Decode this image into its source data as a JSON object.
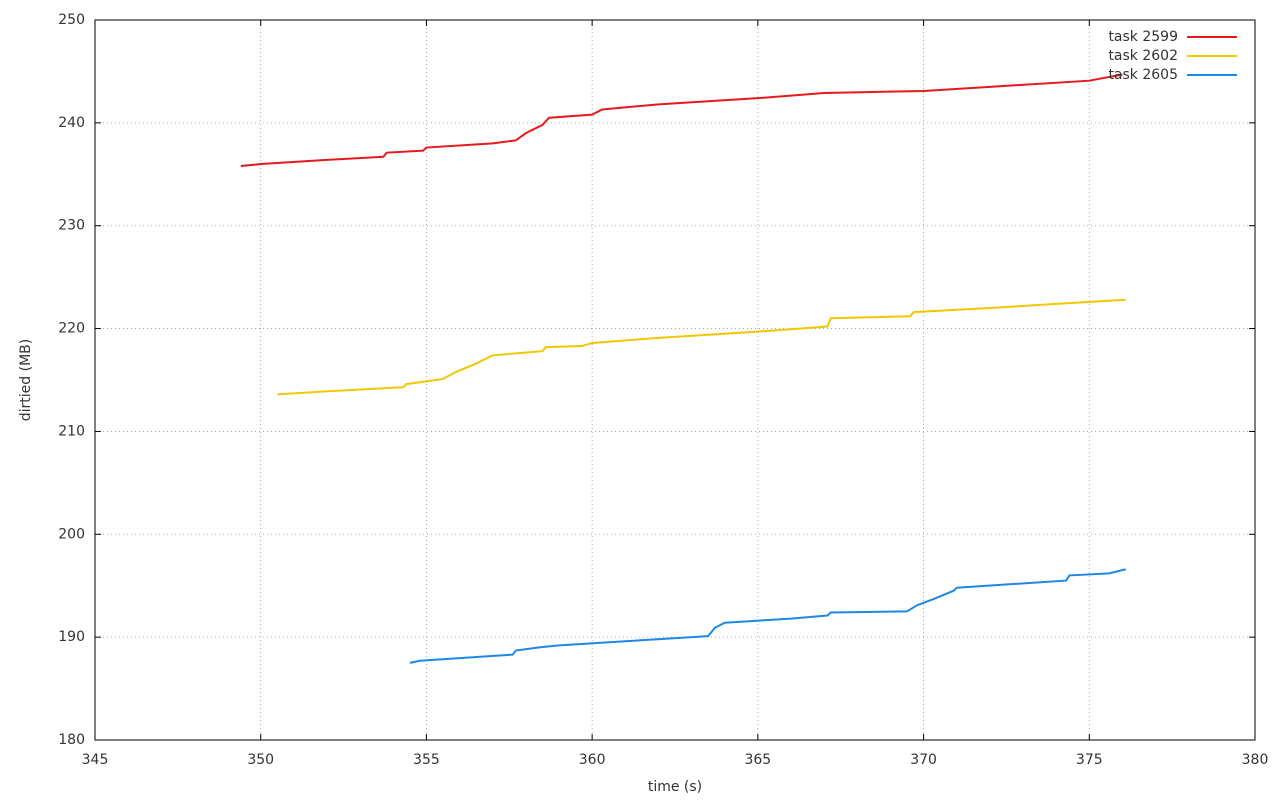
{
  "chart_data": {
    "type": "line",
    "x_label": "time (s)",
    "y_label": "dirtied (MB)",
    "xlim": [
      345,
      380
    ],
    "xticks": [
      345,
      350,
      355,
      360,
      365,
      370,
      375,
      380
    ],
    "ylim": [
      180,
      250
    ],
    "yticks": [
      180,
      190,
      200,
      210,
      220,
      230,
      240,
      250
    ],
    "grid": true,
    "legend": "top right",
    "series": [
      {
        "name": "task 2599",
        "color": "#e41a1c",
        "x": [
          349.4,
          350,
          352,
          353.7,
          353.8,
          354.9,
          355,
          357,
          357.7,
          358,
          358.5,
          358.7,
          360,
          360.3,
          362,
          365,
          367,
          370,
          372,
          375,
          376
        ],
        "values": [
          235.8,
          236,
          236.4,
          236.7,
          237.1,
          237.3,
          237.6,
          238,
          238.3,
          239,
          239.8,
          240.5,
          240.8,
          241.3,
          241.8,
          242.4,
          242.9,
          243.1,
          243.5,
          244.1,
          244.7
        ]
      },
      {
        "name": "task 2602",
        "color": "#f0c800",
        "x": [
          350.5,
          352,
          354.3,
          354.4,
          355.5,
          355.9,
          356.5,
          357,
          358.5,
          358.6,
          359.7,
          360,
          362,
          365,
          367.1,
          367.2,
          369.6,
          369.7,
          372,
          374,
          376.1
        ],
        "values": [
          213.6,
          213.9,
          214.3,
          214.6,
          215.1,
          215.8,
          216.6,
          217.4,
          217.8,
          218.2,
          218.3,
          218.6,
          219.1,
          219.7,
          220.2,
          221,
          221.2,
          221.6,
          222,
          222.4,
          222.8
        ]
      },
      {
        "name": "task 2605",
        "color": "#1e88e5",
        "x": [
          354.5,
          354.8,
          357.6,
          357.7,
          358.4,
          359,
          361,
          363.5,
          363.7,
          364,
          366,
          367.1,
          367.2,
          369.5,
          369.8,
          370.3,
          370.9,
          371,
          374.3,
          374.4,
          375.6,
          376.1
        ],
        "values": [
          187.5,
          187.7,
          188.3,
          188.7,
          189,
          189.2,
          189.6,
          190.1,
          190.9,
          191.4,
          191.8,
          192.1,
          192.4,
          192.5,
          193.1,
          193.7,
          194.5,
          194.8,
          195.5,
          196,
          196.2,
          196.6
        ]
      }
    ]
  }
}
